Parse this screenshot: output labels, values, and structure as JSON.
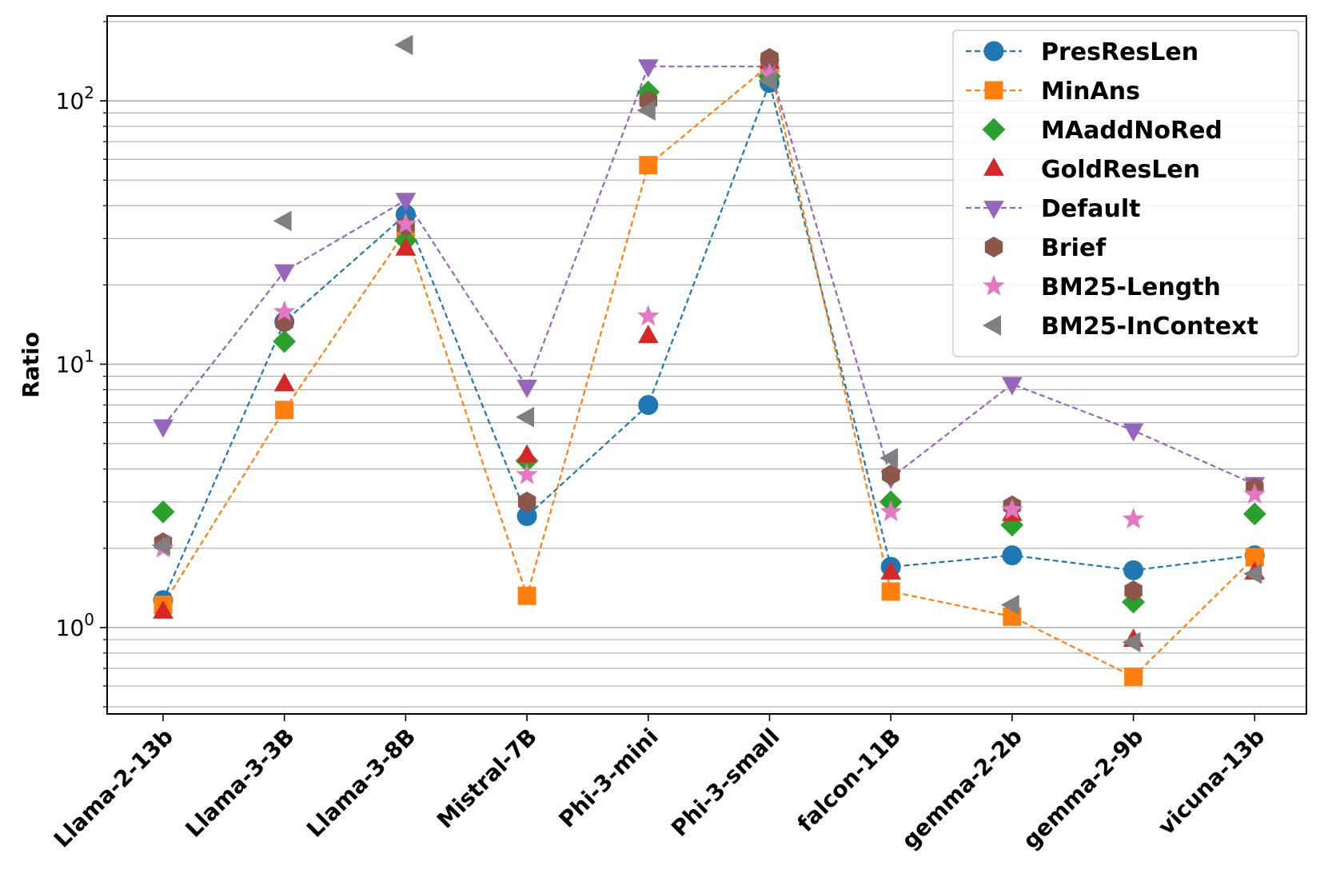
{
  "chart_data": {
    "type": "line",
    "yscale": "log",
    "ylabel": "Ratio",
    "xlabel": "",
    "ylim": [
      0.47,
      210
    ],
    "ytick_labels": [
      {
        "value": 1,
        "base": "10",
        "exp": "0"
      },
      {
        "value": 10,
        "base": "10",
        "exp": "1"
      },
      {
        "value": 100,
        "base": "10",
        "exp": "2"
      }
    ],
    "grid": "horizontal major and minor",
    "legend_position": "top-right",
    "categories": [
      "Llama-2-13b",
      "Llama-3-3B",
      "Llama-3-8B",
      "Mistral-7B",
      "Phi-3-mini",
      "Phi-3-small",
      "falcon-11B",
      "gemma-2-2b",
      "gemma-2-9b",
      "vicuna-13b"
    ],
    "series": [
      {
        "name": "PresResLen",
        "color": "#1f77b4",
        "marker": "circle",
        "line": true,
        "values": [
          1.27,
          14.5,
          37,
          2.65,
          7.0,
          117,
          1.7,
          1.88,
          1.65,
          1.88
        ]
      },
      {
        "name": "MinAns",
        "color": "#ff7f0e",
        "marker": "square",
        "line": true,
        "values": [
          1.22,
          6.7,
          32,
          1.32,
          57,
          137,
          1.37,
          1.1,
          0.65,
          1.85
        ]
      },
      {
        "name": "MAaddNoRed",
        "color": "#2ca02c",
        "marker": "diamond",
        "line": false,
        "values": [
          2.75,
          12.2,
          29.5,
          4.3,
          108,
          124,
          3.0,
          2.45,
          1.25,
          2.7
        ]
      },
      {
        "name": "GoldResLen",
        "color": "#d62728",
        "marker": "triangle-up",
        "line": false,
        "values": [
          1.15,
          8.4,
          27.5,
          4.5,
          12.8,
          141,
          1.62,
          2.7,
          0.9,
          1.62
        ]
      },
      {
        "name": "Default",
        "color": "#9467bd",
        "marker": "triangle-down",
        "line": true,
        "values": [
          5.8,
          22.5,
          42,
          8.2,
          135,
          135,
          3.7,
          8.4,
          5.6,
          3.5
        ]
      },
      {
        "name": "Brief",
        "color": "#8c564b",
        "marker": "hexagon",
        "line": false,
        "values": [
          2.1,
          14.4,
          33.5,
          3.0,
          100,
          145,
          3.8,
          2.9,
          1.38,
          3.4
        ]
      },
      {
        "name": "BM25-Length",
        "color": "#e377c2",
        "marker": "star",
        "line": false,
        "values": [
          2.0,
          15.8,
          34,
          3.8,
          15.2,
          126,
          2.75,
          2.8,
          2.58,
          3.2
        ]
      },
      {
        "name": "BM25-InContext",
        "color": "#7f7f7f",
        "marker": "triangle-left",
        "line": false,
        "values": [
          2.05,
          35,
          163,
          6.3,
          92,
          119,
          4.4,
          1.22,
          0.88,
          1.6
        ]
      }
    ]
  }
}
